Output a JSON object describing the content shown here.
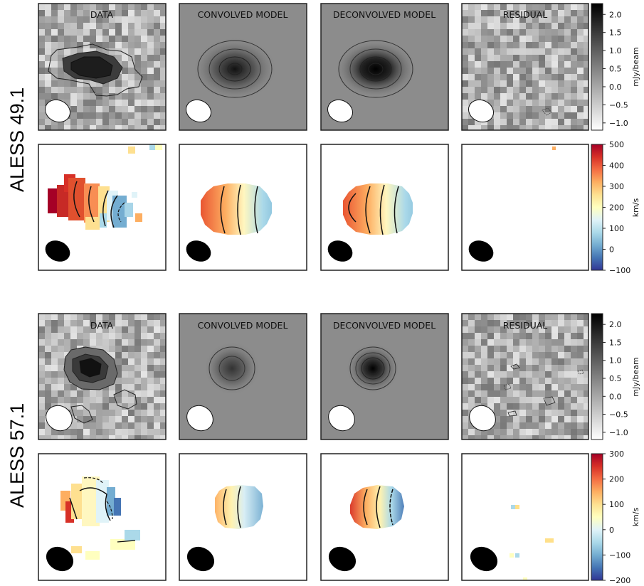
{
  "chart_data": {
    "type": "heatmap",
    "columns": [
      "DATA",
      "CONVOLVED MODEL",
      "DECONVOLVED MODEL",
      "RESIDUAL"
    ],
    "sources": [
      {
        "name": "ALESS 49.1",
        "intensity_colorbar": {
          "label": "mJy/beam",
          "range": [
            -1.2,
            2.3
          ],
          "ticks": [
            "2.0",
            "1.5",
            "1.0",
            "0.5",
            "0.0",
            "−0.5",
            "−1.0"
          ],
          "tick_values": [
            2.0,
            1.5,
            1.0,
            0.5,
            0.0,
            -0.5,
            -1.0
          ]
        },
        "velocity_colorbar": {
          "label": "km/s",
          "range": [
            -100,
            500
          ],
          "ticks": [
            "500",
            "400",
            "300",
            "200",
            "100",
            "0",
            "−100"
          ],
          "tick_values": [
            500,
            400,
            300,
            200,
            100,
            0,
            -100
          ]
        }
      },
      {
        "name": "ALESS 57.1",
        "intensity_colorbar": {
          "label": "mJy/beam",
          "range": [
            -1.2,
            2.3
          ],
          "ticks": [
            "2.0",
            "1.5",
            "1.0",
            "0.5",
            "0.0",
            "−0.5",
            "−1.0"
          ],
          "tick_values": [
            2.0,
            1.5,
            1.0,
            0.5,
            0.0,
            -0.5,
            -1.0
          ]
        },
        "velocity_colorbar": {
          "label": "km/s",
          "range": [
            -200,
            300
          ],
          "ticks": [
            "300",
            "200",
            "100",
            "0",
            "−100",
            "−200"
          ],
          "tick_values": [
            300,
            200,
            100,
            0,
            -100,
            -200
          ]
        }
      }
    ],
    "grid": false
  }
}
